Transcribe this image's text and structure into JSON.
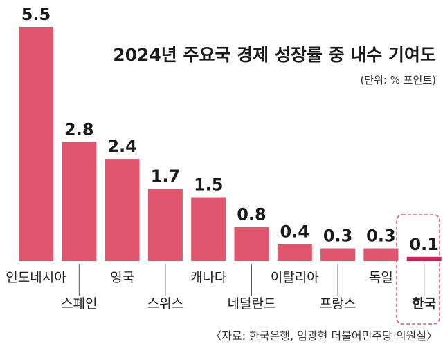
{
  "chart_data": {
    "type": "bar",
    "title": "2024년 주요국 경제 성장률 중 내수 기여도",
    "unit_note": "(단위: % 포인트)",
    "categories": [
      "인도네시아",
      "스페인",
      "영국",
      "스위스",
      "캐나다",
      "네덜란드",
      "이탈리아",
      "프랑스",
      "독일",
      "한국"
    ],
    "values": [
      5.5,
      2.8,
      2.4,
      1.7,
      1.5,
      0.8,
      0.4,
      0.3,
      0.3,
      0.1
    ],
    "value_labels": [
      "5.5",
      "2.8",
      "2.4",
      "1.7",
      "1.5",
      "0.8",
      "0.4",
      "0.3",
      "0.3",
      "0.1"
    ],
    "highlight": "한국",
    "ylim": [
      0,
      5.5
    ],
    "grid": false,
    "source": "〈자료: 한국은행, 임광현 더불어민주당 의원실〉",
    "colors": {
      "bar": "#e0566f",
      "highlight_bar": "#d61d55",
      "highlight_box": "#e05a78",
      "leader": "#555555"
    }
  }
}
